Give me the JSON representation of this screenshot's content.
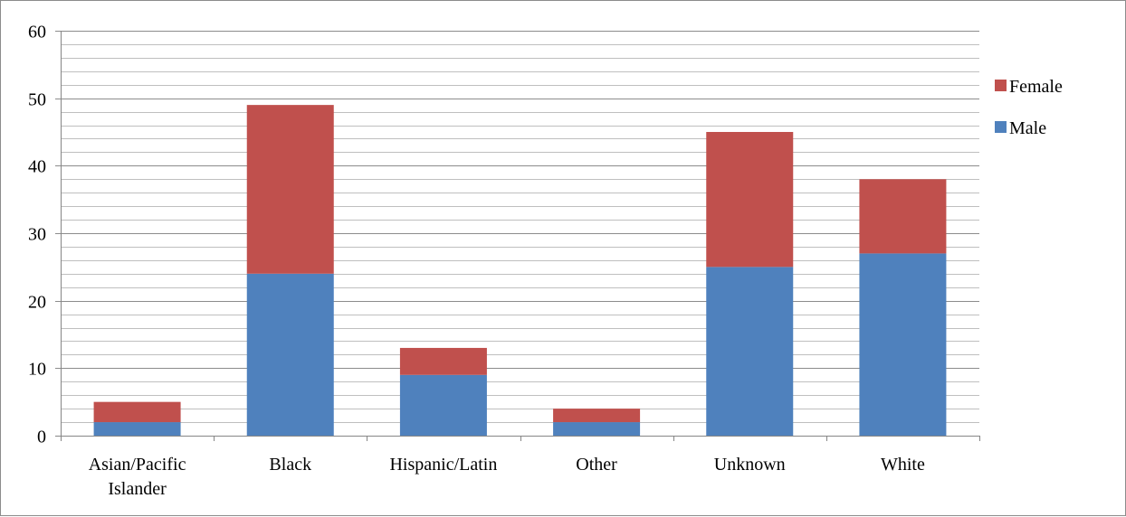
{
  "chart_data": {
    "type": "bar",
    "stacked": true,
    "categories": [
      [
        "Asian/Pacific",
        "Islander"
      ],
      [
        "Black"
      ],
      [
        "Hispanic/Latin"
      ],
      [
        "Other"
      ],
      [
        "Unknown"
      ],
      [
        "White"
      ]
    ],
    "series": [
      {
        "name": "Male",
        "color": "#4f81bd",
        "values": [
          2,
          24,
          9,
          2,
          25,
          27
        ]
      },
      {
        "name": "Female",
        "color": "#c0504d",
        "values": [
          3,
          25,
          4,
          2,
          20,
          11
        ]
      }
    ],
    "ylim": [
      0,
      60
    ],
    "y_ticks": [
      0,
      10,
      20,
      30,
      40,
      50,
      60
    ],
    "y_minor_step": 2,
    "grid": true,
    "legend_position": "right",
    "legend_order": [
      "Female",
      "Male"
    ]
  }
}
